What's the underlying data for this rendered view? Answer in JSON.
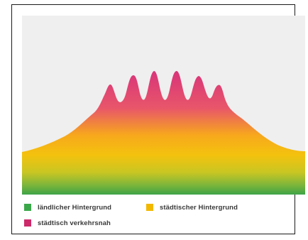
{
  "colors": {
    "background_panel": "#efefef",
    "rural_green": "#3aa84a",
    "urban_yellow": "#f2b800",
    "traffic_magenta": "#cc2a6a"
  },
  "diagram": {
    "peaks": 6
  },
  "legend": {
    "items": [
      {
        "label": "ländlicher Hintergrund",
        "color": "#3aa84a"
      },
      {
        "label": "städtischer Hintergrund",
        "color": "#f2b800"
      },
      {
        "label": "städtisch verkehrsnah",
        "color": "#cc2a6a"
      }
    ]
  }
}
